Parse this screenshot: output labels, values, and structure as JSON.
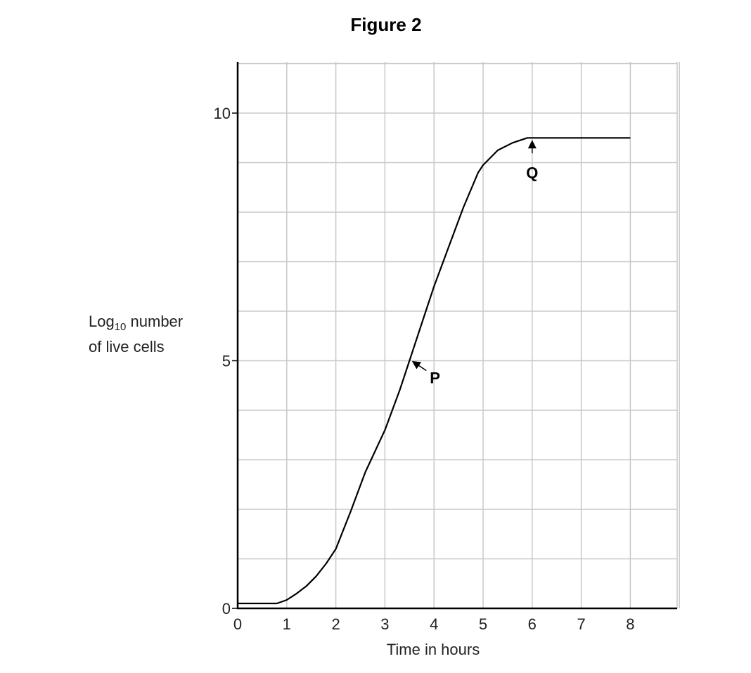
{
  "chart_data": {
    "type": "line",
    "title": "Figure 2",
    "xlabel": "Time in hours",
    "ylabel": {
      "prefix": "Log",
      "subscript": "10",
      "line1_rest": " number",
      "line2": "of live cells"
    },
    "xlim": [
      0,
      9
    ],
    "ylim": [
      0,
      11
    ],
    "xticks": [
      0,
      1,
      2,
      3,
      4,
      5,
      6,
      7,
      8
    ],
    "yticks": [
      0,
      5,
      10
    ],
    "grid": true,
    "series": [
      {
        "x": [
          0,
          0.8,
          1.0,
          1.2,
          1.4,
          1.6,
          1.8,
          2.0,
          2.3,
          2.6,
          3.0,
          3.3,
          3.5,
          3.8,
          4.0,
          4.3,
          4.6,
          4.9,
          5.0,
          5.3,
          5.6,
          5.9,
          6.0,
          7.0,
          8.0
        ],
        "y": [
          0.1,
          0.1,
          0.17,
          0.3,
          0.45,
          0.65,
          0.9,
          1.2,
          1.95,
          2.75,
          3.6,
          4.4,
          5.0,
          5.9,
          6.5,
          7.3,
          8.1,
          8.8,
          8.95,
          9.25,
          9.4,
          9.5,
          9.5,
          9.5,
          9.5
        ]
      }
    ],
    "annotations": [
      {
        "label": "P",
        "x": 3.5,
        "y": 5.0
      },
      {
        "label": "Q",
        "x": 6.0,
        "y": 9.5
      }
    ]
  }
}
